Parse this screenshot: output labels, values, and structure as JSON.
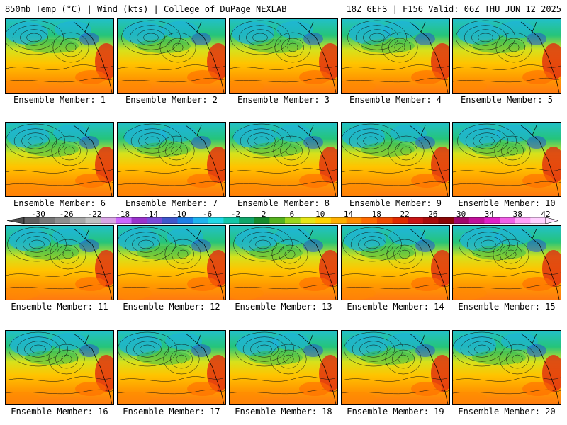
{
  "header": {
    "left_title": "850mb Temp (°C) | Wind (kts) | College of DuPage NEXLAB",
    "right_title": "18Z GEFS | F156 Valid: 06Z THU JUN 12 2025"
  },
  "panel_label_prefix": "Ensemble Member: ",
  "members": [
    1,
    2,
    3,
    4,
    5,
    6,
    7,
    8,
    9,
    10,
    11,
    12,
    13,
    14,
    15,
    16,
    17,
    18,
    19,
    20
  ],
  "colorbar": {
    "labels": [
      "-30",
      "-26",
      "-22",
      "-18",
      "-14",
      "-10",
      "-6",
      "-2",
      "2",
      "6",
      "10",
      "14",
      "18",
      "22",
      "26",
      "30",
      "34",
      "38",
      "42"
    ],
    "colors": [
      "#5f5f5f",
      "#777777",
      "#8e8e8e",
      "#a8a8a8",
      "#c2c2c2",
      "#d9a6e6",
      "#cc66ff",
      "#9933cc",
      "#7a4ad9",
      "#3f57cc",
      "#1c7fe8",
      "#1eb4f0",
      "#20d8e8",
      "#12c7a8",
      "#0fa66b",
      "#178c2c",
      "#55b21f",
      "#9bd61e",
      "#e6e617",
      "#ffd400",
      "#ffb000",
      "#ff8c00",
      "#ff6a00",
      "#f04a00",
      "#e02a00",
      "#c81414",
      "#a80c0c",
      "#8a0606",
      "#a0066a",
      "#c0109a",
      "#e020c8",
      "#f060e6",
      "#ffa0f8",
      "#ffd0ff"
    ]
  }
}
